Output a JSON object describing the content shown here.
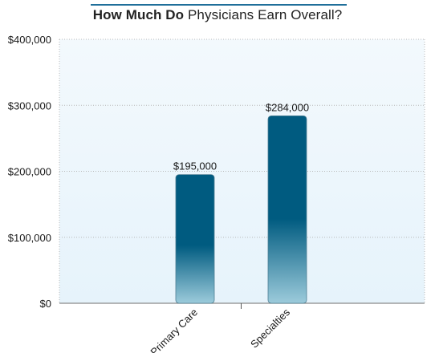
{
  "chart_data": {
    "type": "bar",
    "title_bold": "How Much Do",
    "title_rest": " Physicians Earn Overall?",
    "categories": [
      "Primary Care",
      "Specialties"
    ],
    "values": [
      195000,
      284000
    ],
    "value_labels": [
      "$195,000",
      "$284,000"
    ],
    "y_ticks": [
      0,
      100000,
      200000,
      300000,
      400000
    ],
    "y_tick_labels": [
      "$0",
      "$100,000",
      "$200,000",
      "$300,000",
      "$400,000"
    ],
    "ylim": [
      0,
      400000
    ],
    "grid": true,
    "colors": {
      "bar_top": "#005b80",
      "bar_bottom": "#9ccbdb",
      "plot_bg_top": "#f3f9fd",
      "plot_bg_bottom": "#e6f3fb",
      "grid": "#b8b8b8",
      "title_rule": "#1f6f9a"
    }
  }
}
